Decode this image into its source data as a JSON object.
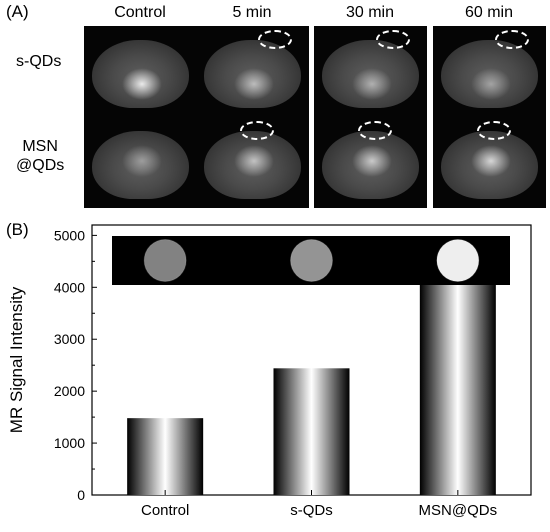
{
  "panel_a": {
    "label": "(A)",
    "columns": [
      "Control",
      "5 min",
      "30 min",
      "60 min"
    ],
    "rows": [
      {
        "label_lines": [
          "s-QDs"
        ],
        "enhancement": [
          0.9,
          0.55,
          0.45,
          0.35
        ]
      },
      {
        "label_lines": [
          "MSN",
          "@QDs"
        ],
        "enhancement": [
          0.3,
          0.6,
          0.65,
          0.75
        ]
      }
    ],
    "roi_marker": "dashed-ellipse"
  },
  "panel_b": {
    "label": "(B)"
  },
  "chart_data": {
    "type": "bar",
    "categories": [
      "Control",
      "s-QDs",
      "MSN@QDs"
    ],
    "values": [
      1480,
      2440,
      4220
    ],
    "ylabel": "MR Signal Intensity",
    "xlabel": "",
    "ylim": [
      0,
      5200
    ],
    "yticks": [
      0,
      1000,
      2000,
      3000,
      4000,
      5000
    ],
    "phantom_brightness": [
      0.42,
      0.5,
      0.92
    ],
    "grid": false,
    "bar_fill": "horizontal black-white-black gradient",
    "colors": {
      "axis": "#000000",
      "inset_background": "#000000"
    }
  }
}
